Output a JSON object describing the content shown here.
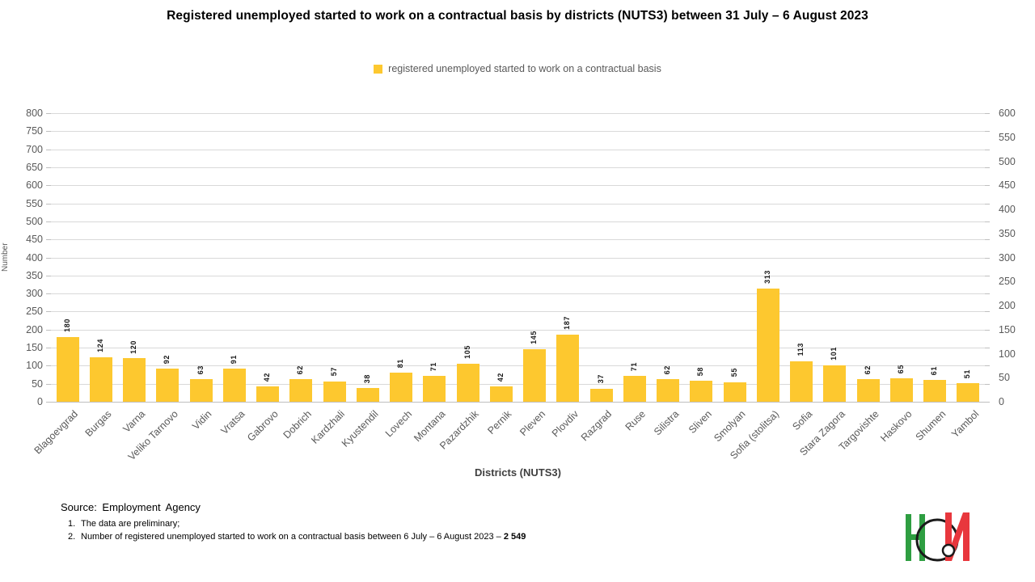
{
  "title": "Registered unemployed started to work on a  contractual basis by districts (NUTS3) between 31 July – 6 August 2023",
  "legend": {
    "label": "registered unemployed started to work on a contractual basis"
  },
  "colors": {
    "bar": "#FDC82F",
    "grid": "#D9D9D9",
    "axis_line": "#BFBFBF",
    "axis_text": "#595959"
  },
  "chart_data": {
    "type": "bar",
    "title": "Registered unemployed started to work on a contractual basis by districts (NUTS3) between 31 July – 6 August 2023",
    "categories": [
      "Blagoevgrad",
      "Burgas",
      "Varna",
      "Veliko Tarnovo",
      "Vidin",
      "Vratsa",
      "Gabrovo",
      "Dobrich",
      "Kardzhali",
      "Kyustendil",
      "Lovech",
      "Montana",
      "Pazardzhik",
      "Pernik",
      "Pleven",
      "Plovdiv",
      "Razgrad",
      "Ruse",
      "Silistra",
      "Sliven",
      "Smolyan",
      "Sofia (stolitsa)",
      "Sofia",
      "Stara Zagora",
      "Targovishte",
      "Haskovo",
      "Shumen",
      "Yambol"
    ],
    "values": [
      180,
      124,
      120,
      92,
      63,
      91,
      42,
      62,
      57,
      38,
      81,
      71,
      105,
      42,
      145,
      187,
      37,
      71,
      62,
      58,
      55,
      313,
      113,
      101,
      62,
      65,
      61,
      51
    ],
    "xlabel": "Districts (NUTS3)",
    "ylabel": "Number",
    "left_axis": {
      "min": 0,
      "max": 800,
      "step": 50
    },
    "right_axis": {
      "min": 0,
      "max": 600,
      "step": 50
    },
    "grid": true,
    "legend_position": "top",
    "series_name": "registered unemployed started to work on a contractual basis"
  },
  "footer": {
    "source": "Source: Employment Agency",
    "notes": [
      {
        "num": "1.",
        "text": "The data are preliminary;"
      },
      {
        "num": "2.",
        "text": "Number of registered unemployed started to work on a contractual basis between 6 July – 6 August 2023 – ",
        "bold": "2 549"
      }
    ]
  },
  "logo": {
    "name": "NSI logo"
  }
}
